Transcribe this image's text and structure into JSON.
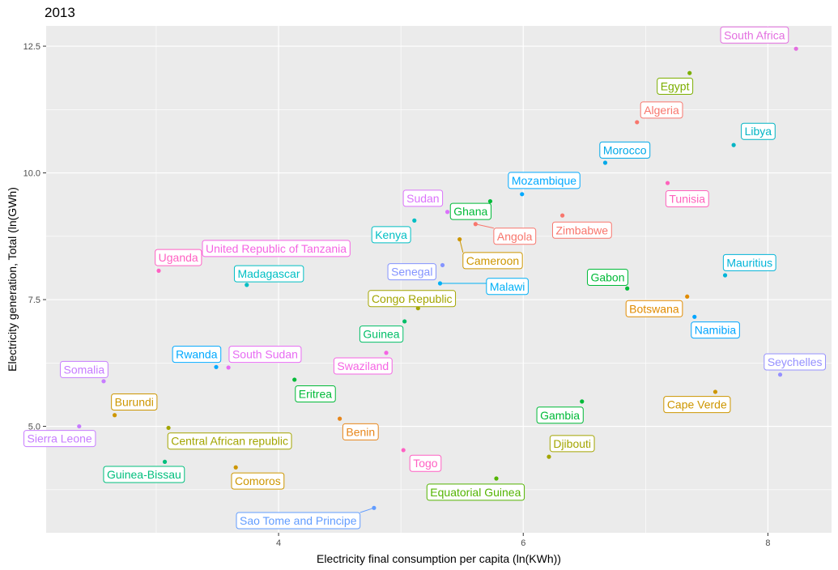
{
  "chart_data": {
    "type": "scatter",
    "title": "2013",
    "xlabel": "Electricity final consumption per capita (ln(KWh))",
    "ylabel": "Electricity generation, Total (ln(GWh)",
    "xlim": [
      2.1,
      8.52
    ],
    "ylim": [
      2.9,
      12.9
    ],
    "x_ticks": [
      4,
      6,
      8
    ],
    "x_tick_labels": [
      "4",
      "6",
      "8"
    ],
    "y_ticks": [
      5.0,
      7.5,
      10.0,
      12.5
    ],
    "y_tick_labels": [
      "5.0",
      "7.5",
      "10.0",
      "12.5"
    ],
    "grid": true,
    "legend": "none",
    "points": [
      {
        "name": "South Africa",
        "x": 8.23,
        "y": 12.45,
        "color": "#E36EE0",
        "lx": 7.89,
        "ly": 12.72
      },
      {
        "name": "Egypt",
        "x": 7.36,
        "y": 11.97,
        "color": "#7CAE00",
        "lx": 7.24,
        "ly": 11.71
      },
      {
        "name": "Algeria",
        "x": 6.93,
        "y": 11.0,
        "color": "#F8766D",
        "lx": 7.13,
        "ly": 11.24
      },
      {
        "name": "Libya",
        "x": 7.72,
        "y": 10.55,
        "color": "#00B4C4",
        "lx": 7.92,
        "ly": 10.82
      },
      {
        "name": "Morocco",
        "x": 6.67,
        "y": 10.2,
        "color": "#00A8E8",
        "lx": 6.83,
        "ly": 10.45
      },
      {
        "name": "Mozambique",
        "x": 5.99,
        "y": 9.58,
        "color": "#00A9FF",
        "lx": 6.17,
        "ly": 9.85
      },
      {
        "name": "Tunisia",
        "x": 7.18,
        "y": 9.8,
        "color": "#FF62BC",
        "lx": 7.34,
        "ly": 9.49
      },
      {
        "name": "Sudan",
        "x": 5.38,
        "y": 9.23,
        "color": "#DB72FB",
        "lx": 5.18,
        "ly": 9.5
      },
      {
        "name": "Ghana",
        "x": 5.73,
        "y": 9.44,
        "color": "#00BA38",
        "lx": 5.57,
        "ly": 9.24
      },
      {
        "name": "Zimbabwe",
        "x": 6.32,
        "y": 9.16,
        "color": "#F8766D",
        "lx": 6.48,
        "ly": 8.87
      },
      {
        "name": "Kenya",
        "x": 5.11,
        "y": 9.06,
        "color": "#00BFC4",
        "lx": 4.92,
        "ly": 8.78
      },
      {
        "name": "Angola",
        "x": 5.61,
        "y": 8.99,
        "color": "#F8766D",
        "lx": 5.93,
        "ly": 8.75
      },
      {
        "name": "United Republic of Tanzania",
        "x": 4.6,
        "y": 8.6,
        "color": "#F564E3",
        "lx": 3.98,
        "ly": 8.51,
        "noDot": true
      },
      {
        "name": "Cameroon",
        "x": 5.48,
        "y": 8.69,
        "color": "#CD9600",
        "lx": 5.75,
        "ly": 8.27
      },
      {
        "name": "Uganda",
        "x": 3.02,
        "y": 8.07,
        "color": "#FF61C3",
        "lx": 3.18,
        "ly": 8.33
      },
      {
        "name": "Senegal",
        "x": 5.34,
        "y": 8.18,
        "color": "#8494FF",
        "lx": 5.09,
        "ly": 8.05
      },
      {
        "name": "Madagascar",
        "x": 3.74,
        "y": 7.79,
        "color": "#00BFC4",
        "lx": 3.92,
        "ly": 8.01
      },
      {
        "name": "Malawi",
        "x": 5.32,
        "y": 7.82,
        "color": "#00B0F6",
        "lx": 5.87,
        "ly": 7.76
      },
      {
        "name": "Gabon",
        "x": 6.85,
        "y": 7.72,
        "color": "#00BA38",
        "lx": 6.69,
        "ly": 7.94
      },
      {
        "name": "Mauritius",
        "x": 7.65,
        "y": 7.98,
        "color": "#00B4D8",
        "lx": 7.85,
        "ly": 8.23
      },
      {
        "name": "Congo Republic",
        "x": 5.14,
        "y": 7.33,
        "color": "#A3A500",
        "lx": 5.09,
        "ly": 7.52
      },
      {
        "name": "Botswana",
        "x": 7.34,
        "y": 7.56,
        "color": "#E08B00",
        "lx": 7.07,
        "ly": 7.32
      },
      {
        "name": "Namibia",
        "x": 7.4,
        "y": 7.16,
        "color": "#00A5FF",
        "lx": 7.57,
        "ly": 6.9
      },
      {
        "name": "Guinea",
        "x": 5.03,
        "y": 7.07,
        "color": "#00BE67",
        "lx": 4.84,
        "ly": 6.82
      },
      {
        "name": "Rwanda",
        "x": 3.49,
        "y": 6.17,
        "color": "#00A9FF",
        "lx": 3.33,
        "ly": 6.42
      },
      {
        "name": "South Sudan",
        "x": 3.59,
        "y": 6.16,
        "color": "#E76BF3",
        "lx": 3.89,
        "ly": 6.42
      },
      {
        "name": "Swaziland",
        "x": 4.88,
        "y": 6.45,
        "color": "#F564E3",
        "lx": 4.69,
        "ly": 6.19
      },
      {
        "name": "Seychelles",
        "x": 8.1,
        "y": 6.02,
        "color": "#9590FF",
        "lx": 8.22,
        "ly": 6.27
      },
      {
        "name": "Somalia",
        "x": 2.57,
        "y": 5.89,
        "color": "#C77CFF",
        "lx": 2.41,
        "ly": 6.12
      },
      {
        "name": "Eritrea",
        "x": 4.13,
        "y": 5.92,
        "color": "#00BA38",
        "lx": 4.3,
        "ly": 5.64
      },
      {
        "name": "Burundi",
        "x": 2.66,
        "y": 5.22,
        "color": "#CD9600",
        "lx": 2.82,
        "ly": 5.48
      },
      {
        "name": "Cape Verde",
        "x": 7.57,
        "y": 5.68,
        "color": "#CD9600",
        "lx": 7.42,
        "ly": 5.43
      },
      {
        "name": "Gambia",
        "x": 6.48,
        "y": 5.49,
        "color": "#00BA38",
        "lx": 6.3,
        "ly": 5.22
      },
      {
        "name": "Sierra Leone",
        "x": 2.37,
        "y": 5.0,
        "color": "#C77CFF",
        "lx": 2.21,
        "ly": 4.76
      },
      {
        "name": "Central African republic",
        "x": 3.1,
        "y": 4.97,
        "color": "#A3A500",
        "lx": 3.6,
        "ly": 4.71
      },
      {
        "name": "Benin",
        "x": 4.5,
        "y": 5.15,
        "color": "#E7861B",
        "lx": 4.67,
        "ly": 4.89
      },
      {
        "name": "Djibouti",
        "x": 6.21,
        "y": 4.4,
        "color": "#A3A500",
        "lx": 6.4,
        "ly": 4.66
      },
      {
        "name": "Togo",
        "x": 5.02,
        "y": 4.53,
        "color": "#FF61C3",
        "lx": 5.2,
        "ly": 4.27
      },
      {
        "name": "Guinea-Bissau",
        "x": 3.07,
        "y": 4.3,
        "color": "#00BF7D",
        "lx": 2.9,
        "ly": 4.05
      },
      {
        "name": "Comoros",
        "x": 3.65,
        "y": 4.19,
        "color": "#CD9600",
        "lx": 3.83,
        "ly": 3.92
      },
      {
        "name": "Equatorial Guinea",
        "x": 5.78,
        "y": 3.97,
        "color": "#53B400",
        "lx": 5.61,
        "ly": 3.7
      },
      {
        "name": "Sao Tome and Principe",
        "x": 4.78,
        "y": 3.39,
        "color": "#619CFF",
        "lx": 4.16,
        "ly": 3.14
      }
    ]
  }
}
